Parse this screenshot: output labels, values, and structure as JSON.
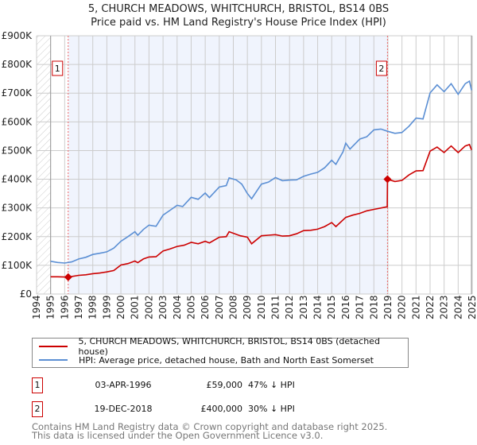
{
  "title_line1": "5, CHURCH MEADOWS, WHITCHURCH, BRISTOL, BS14 0BS",
  "title_line2": "Price paid vs. HM Land Registry's House Price Index (HPI)",
  "legend": [
    {
      "label": "5, CHURCH MEADOWS, WHITCHURCH, BRISTOL, BS14 0BS (detached house)",
      "color": "#cc0000"
    },
    {
      "label": "HPI: Average price, detached house, Bath and North East Somerset",
      "color": "#5b8fd4"
    }
  ],
  "transactions": [
    {
      "num": "1",
      "date": "03-APR-1996",
      "price": "£59,000",
      "hpi": "47% ↓ HPI"
    },
    {
      "num": "2",
      "date": "19-DEC-2018",
      "price": "£400,000",
      "hpi": "30% ↓ HPI"
    }
  ],
  "footer": {
    "line1": "Contains HM Land Registry data © Crown copyright and database right 2025.",
    "line2": "This data is licensed under the Open Government Licence v3.0."
  },
  "chart_data": {
    "type": "line",
    "title": "5, CHURCH MEADOWS, WHITCHURCH, BRISTOL, BS14 0BS — Price paid vs. HM Land Registry's House Price Index (HPI)",
    "xlim": [
      1994,
      2025
    ],
    "ylim": [
      0,
      900
    ],
    "y_unit": "£K",
    "x_ticks": [
      "1994",
      "1995",
      "1996",
      "1997",
      "1998",
      "1999",
      "2000",
      "2001",
      "2002",
      "2003",
      "2004",
      "2005",
      "2006",
      "2007",
      "2008",
      "2009",
      "2010",
      "2011",
      "2012",
      "2013",
      "2014",
      "2015",
      "2016",
      "2017",
      "2018",
      "2019",
      "2020",
      "2021",
      "2022",
      "2023",
      "2024",
      "2025"
    ],
    "y_ticks": [
      {
        "v": 0,
        "label": "£0"
      },
      {
        "v": 100,
        "label": "£100K"
      },
      {
        "v": 200,
        "label": "£200K"
      },
      {
        "v": 300,
        "label": "£300K"
      },
      {
        "v": 400,
        "label": "£400K"
      },
      {
        "v": 500,
        "label": "£500K"
      },
      {
        "v": 600,
        "label": "£600K"
      },
      {
        "v": 700,
        "label": "£700K"
      },
      {
        "v": 800,
        "label": "£800K"
      },
      {
        "v": 900,
        "label": "£900K"
      }
    ],
    "grid": true,
    "shaded_range": [
      1996.25,
      2018.97
    ],
    "hatched_range": [
      1994,
      1995
    ],
    "series": [
      {
        "name": "HPI",
        "color": "#5b8fd4",
        "points": [
          [
            1995,
            114
          ],
          [
            1995.5,
            110
          ],
          [
            1996,
            108
          ],
          [
            1996.5,
            112
          ],
          [
            1997,
            122
          ],
          [
            1997.5,
            128
          ],
          [
            1998,
            138
          ],
          [
            1998.5,
            142
          ],
          [
            1999,
            147
          ],
          [
            1999.5,
            160
          ],
          [
            2000,
            184
          ],
          [
            2000.5,
            200
          ],
          [
            2001,
            217
          ],
          [
            2001.2,
            205
          ],
          [
            2001.6,
            225
          ],
          [
            2002,
            240
          ],
          [
            2002.5,
            236
          ],
          [
            2003,
            275
          ],
          [
            2003.5,
            292
          ],
          [
            2004,
            309
          ],
          [
            2004.4,
            305
          ],
          [
            2005,
            337
          ],
          [
            2005.5,
            330
          ],
          [
            2006,
            352
          ],
          [
            2006.3,
            336
          ],
          [
            2007,
            373
          ],
          [
            2007.5,
            378
          ],
          [
            2007.7,
            405
          ],
          [
            2008.2,
            398
          ],
          [
            2008.6,
            383
          ],
          [
            2009,
            350
          ],
          [
            2009.3,
            332
          ],
          [
            2010,
            383
          ],
          [
            2010.5,
            390
          ],
          [
            2011,
            406
          ],
          [
            2011.5,
            395
          ],
          [
            2012,
            397
          ],
          [
            2012.5,
            398
          ],
          [
            2013,
            410
          ],
          [
            2013.5,
            418
          ],
          [
            2014,
            424
          ],
          [
            2014.5,
            440
          ],
          [
            2015,
            466
          ],
          [
            2015.3,
            452
          ],
          [
            2015.8,
            495
          ],
          [
            2016,
            526
          ],
          [
            2016.3,
            505
          ],
          [
            2017,
            540
          ],
          [
            2017.5,
            548
          ],
          [
            2018,
            572
          ],
          [
            2018.5,
            575
          ],
          [
            2019,
            567
          ],
          [
            2019.5,
            560
          ],
          [
            2020,
            563
          ],
          [
            2020.5,
            585
          ],
          [
            2021,
            613
          ],
          [
            2021.5,
            610
          ],
          [
            2022,
            701
          ],
          [
            2022.5,
            729
          ],
          [
            2023,
            705
          ],
          [
            2023.5,
            733
          ],
          [
            2024,
            696
          ],
          [
            2024.5,
            733
          ],
          [
            2024.8,
            742
          ],
          [
            2024.95,
            710
          ]
        ]
      },
      {
        "name": "Price paid",
        "color": "#cc0000",
        "points": [
          [
            1995,
            60
          ],
          [
            1995.5,
            60
          ],
          [
            1996.25,
            59
          ],
          [
            1997,
            65
          ],
          [
            1997.5,
            67
          ],
          [
            1998,
            71
          ],
          [
            1998.5,
            73
          ],
          [
            1999,
            77
          ],
          [
            1999.5,
            82
          ],
          [
            2000,
            101
          ],
          [
            2000.5,
            106
          ],
          [
            2001,
            115
          ],
          [
            2001.2,
            109
          ],
          [
            2001.6,
            122
          ],
          [
            2002,
            129
          ],
          [
            2002.5,
            130
          ],
          [
            2003,
            150
          ],
          [
            2003.5,
            157
          ],
          [
            2004,
            166
          ],
          [
            2004.5,
            170
          ],
          [
            2005,
            180
          ],
          [
            2005.5,
            175
          ],
          [
            2006,
            184
          ],
          [
            2006.3,
            178
          ],
          [
            2007,
            198
          ],
          [
            2007.5,
            200
          ],
          [
            2007.7,
            217
          ],
          [
            2008.5,
            203
          ],
          [
            2009,
            198
          ],
          [
            2009.3,
            175
          ],
          [
            2010,
            203
          ],
          [
            2010.5,
            205
          ],
          [
            2011,
            207
          ],
          [
            2011.5,
            202
          ],
          [
            2012,
            203
          ],
          [
            2012.5,
            210
          ],
          [
            2013,
            221
          ],
          [
            2013.5,
            222
          ],
          [
            2014,
            226
          ],
          [
            2014.5,
            235
          ],
          [
            2015,
            249
          ],
          [
            2015.3,
            235
          ],
          [
            2016,
            267
          ],
          [
            2016.5,
            275
          ],
          [
            2017,
            281
          ],
          [
            2017.5,
            290
          ],
          [
            2018,
            295
          ],
          [
            2018.95,
            304
          ],
          [
            2018.97,
            400
          ],
          [
            2019.5,
            392
          ],
          [
            2020,
            396
          ],
          [
            2020.5,
            415
          ],
          [
            2021,
            429
          ],
          [
            2021.5,
            430
          ],
          [
            2022,
            498
          ],
          [
            2022.5,
            512
          ],
          [
            2023,
            493
          ],
          [
            2023.5,
            516
          ],
          [
            2024,
            493
          ],
          [
            2024.5,
            516
          ],
          [
            2024.8,
            521
          ],
          [
            2024.95,
            502
          ]
        ]
      }
    ],
    "sales": [
      {
        "num": "1",
        "x": 1996.25,
        "y": 59
      },
      {
        "num": "2",
        "x": 2018.97,
        "y": 400
      }
    ]
  }
}
